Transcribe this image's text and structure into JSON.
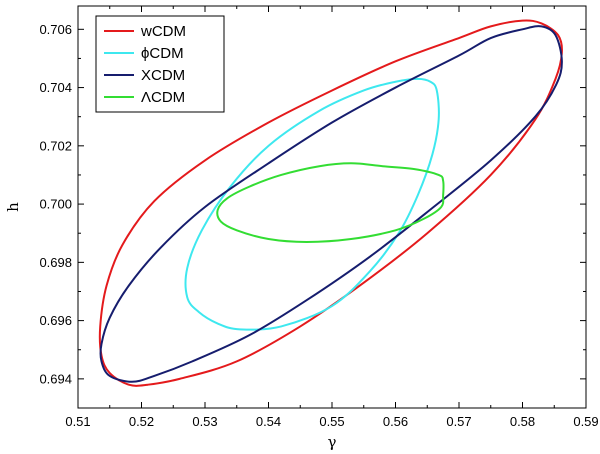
{
  "chart_data": {
    "type": "contour",
    "title": "",
    "xlabel": "γ",
    "ylabel": "h",
    "xlim": [
      0.51,
      0.59
    ],
    "ylim": [
      0.693,
      0.7068
    ],
    "x_ticks": [
      "0.51",
      "0.52",
      "0.53",
      "0.54",
      "0.55",
      "0.56",
      "0.57",
      "0.58",
      "0.59"
    ],
    "y_ticks": [
      "0.694",
      "0.696",
      "0.698",
      "0.700",
      "0.702",
      "0.704",
      "0.706"
    ],
    "grid": false,
    "legend_position": "top-left",
    "series": [
      {
        "name": "wCDM",
        "color": "#e41a1c",
        "points": [
          [
            0.5862,
            0.7052
          ],
          [
            0.5856,
            0.7058
          ],
          [
            0.583,
            0.7062
          ],
          [
            0.58,
            0.7063
          ],
          [
            0.575,
            0.7061
          ],
          [
            0.57,
            0.7057
          ],
          [
            0.56,
            0.7049
          ],
          [
            0.55,
            0.7039
          ],
          [
            0.54,
            0.7028
          ],
          [
            0.53,
            0.7015
          ],
          [
            0.522,
            0.7001
          ],
          [
            0.517,
            0.6986
          ],
          [
            0.5145,
            0.6972
          ],
          [
            0.5135,
            0.6958
          ],
          [
            0.5137,
            0.6948
          ],
          [
            0.515,
            0.6942
          ],
          [
            0.518,
            0.6938
          ],
          [
            0.521,
            0.6938
          ],
          [
            0.526,
            0.694
          ],
          [
            0.535,
            0.6946
          ],
          [
            0.545,
            0.6958
          ],
          [
            0.555,
            0.6973
          ],
          [
            0.565,
            0.699
          ],
          [
            0.575,
            0.701
          ],
          [
            0.582,
            0.7029
          ],
          [
            0.5852,
            0.7043
          ],
          [
            0.5862,
            0.7052
          ]
        ]
      },
      {
        "name": "ϕCDM",
        "color": "#3ee8ef",
        "points": [
          [
            0.5665,
            0.7039
          ],
          [
            0.5655,
            0.7042
          ],
          [
            0.5635,
            0.7043
          ],
          [
            0.56,
            0.7042
          ],
          [
            0.555,
            0.7039
          ],
          [
            0.548,
            0.7032
          ],
          [
            0.54,
            0.702
          ],
          [
            0.534,
            0.7006
          ],
          [
            0.5295,
            0.6991
          ],
          [
            0.5272,
            0.6978
          ],
          [
            0.5272,
            0.6968
          ],
          [
            0.529,
            0.6963
          ],
          [
            0.532,
            0.6959
          ],
          [
            0.5355,
            0.6957
          ],
          [
            0.542,
            0.6958
          ],
          [
            0.55,
            0.6965
          ],
          [
            0.556,
            0.6977
          ],
          [
            0.5605,
            0.699
          ],
          [
            0.5635,
            0.7003
          ],
          [
            0.5658,
            0.7017
          ],
          [
            0.5668,
            0.7029
          ],
          [
            0.5665,
            0.7039
          ]
        ]
      },
      {
        "name": "XCDM",
        "color": "#161d6e",
        "points": [
          [
            0.5862,
            0.7049
          ],
          [
            0.5852,
            0.7058
          ],
          [
            0.583,
            0.7061
          ],
          [
            0.58,
            0.706
          ],
          [
            0.575,
            0.7057
          ],
          [
            0.57,
            0.7051
          ],
          [
            0.56,
            0.704
          ],
          [
            0.55,
            0.7028
          ],
          [
            0.54,
            0.7014
          ],
          [
            0.53,
            0.6999
          ],
          [
            0.523,
            0.6985
          ],
          [
            0.518,
            0.6972
          ],
          [
            0.515,
            0.6961
          ],
          [
            0.5137,
            0.6952
          ],
          [
            0.5137,
            0.6946
          ],
          [
            0.515,
            0.6941
          ],
          [
            0.5185,
            0.6939
          ],
          [
            0.522,
            0.6941
          ],
          [
            0.528,
            0.6946
          ],
          [
            0.537,
            0.6955
          ],
          [
            0.546,
            0.6967
          ],
          [
            0.556,
            0.6982
          ],
          [
            0.566,
            0.6999
          ],
          [
            0.575,
            0.7015
          ],
          [
            0.582,
            0.703
          ],
          [
            0.5853,
            0.7041
          ],
          [
            0.5862,
            0.7049
          ]
        ]
      },
      {
        "name": "ΛCDM",
        "color": "#33dd33",
        "points": [
          [
            0.5675,
            0.7003
          ],
          [
            0.5675,
            0.7008
          ],
          [
            0.5668,
            0.701
          ],
          [
            0.563,
            0.7012
          ],
          [
            0.558,
            0.7013
          ],
          [
            0.553,
            0.7014
          ],
          [
            0.548,
            0.7013
          ],
          [
            0.542,
            0.701
          ],
          [
            0.537,
            0.7006
          ],
          [
            0.5335,
            0.7002
          ],
          [
            0.532,
            0.6998
          ],
          [
            0.5325,
            0.6994
          ],
          [
            0.535,
            0.6991
          ],
          [
            0.54,
            0.6988
          ],
          [
            0.546,
            0.6987
          ],
          [
            0.553,
            0.6988
          ],
          [
            0.56,
            0.6991
          ],
          [
            0.5645,
            0.6995
          ],
          [
            0.5672,
            0.6999
          ],
          [
            0.5675,
            0.7003
          ]
        ]
      }
    ]
  }
}
